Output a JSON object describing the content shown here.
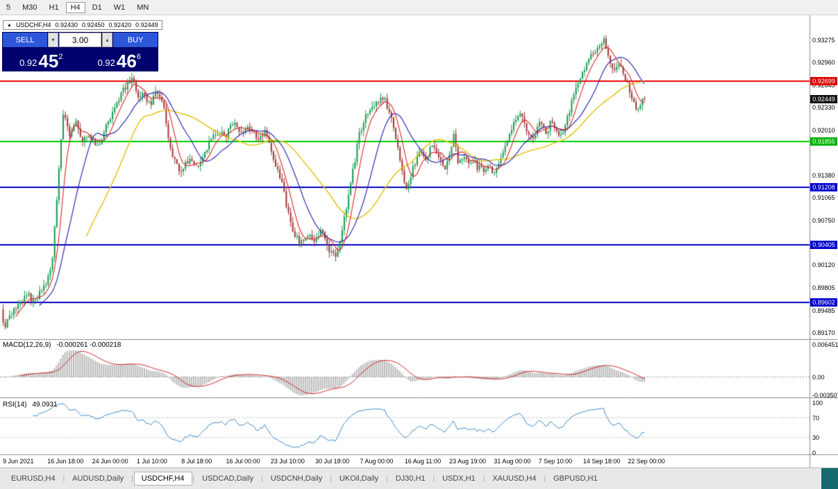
{
  "toolbar": {
    "timeframes": [
      "5",
      "M30",
      "H1",
      "H4",
      "D1",
      "W1",
      "MN"
    ],
    "active": "H4"
  },
  "chart": {
    "title": "USDCHF,H4",
    "ohlc": {
      "open": "0.92430",
      "high": "0.92450",
      "low": "0.92420",
      "close": "0.92449"
    },
    "trade_panel": {
      "sell_label": "SELL",
      "buy_label": "BUY",
      "volume": "3.00",
      "sell": {
        "prefix": "0.92",
        "big": "45",
        "pip": "2"
      },
      "buy": {
        "prefix": "0.92",
        "big": "46",
        "pip": "6"
      }
    }
  },
  "chart_data": {
    "type": "candlestick",
    "symbol": "USDCHF",
    "timeframe": "H4",
    "title": "USDCHF,H4",
    "last_close": 0.92449,
    "price_axis": {
      "min": 0.8917,
      "max": 0.93275
    },
    "y_ticks": [
      {
        "label": "0.93275",
        "value": 0.93275
      },
      {
        "label": "0.92960",
        "value": 0.9296
      },
      {
        "label": "0.92645",
        "value": 0.92645
      },
      {
        "label": "0.92330",
        "value": 0.9233
      },
      {
        "label": "0.92010",
        "value": 0.9201
      },
      {
        "label": "0.91380",
        "value": 0.9138
      },
      {
        "label": "0.91065",
        "value": 0.91065
      },
      {
        "label": "0.90750",
        "value": 0.9075
      },
      {
        "label": "0.90120",
        "value": 0.9012
      },
      {
        "label": "0.89805",
        "value": 0.89805
      },
      {
        "label": "0.89485",
        "value": 0.89485
      },
      {
        "label": "0.89170",
        "value": 0.8917
      }
    ],
    "price_tags": [
      {
        "label": "0.92699",
        "value": 0.92699,
        "color": "#dd0000"
      },
      {
        "label": "0.92449",
        "value": 0.92449,
        "color": "#111111"
      },
      {
        "label": "0.91855",
        "value": 0.91855,
        "color": "#00b300"
      },
      {
        "label": "0.91208",
        "value": 0.91208,
        "color": "#0000cc"
      },
      {
        "label": "0.90405",
        "value": 0.90405,
        "color": "#0000cc"
      },
      {
        "label": "0.89602",
        "value": 0.89602,
        "color": "#0000cc"
      }
    ],
    "hlines": [
      {
        "price": 0.92699,
        "color": "#ee0000"
      },
      {
        "price": 0.91855,
        "color": "#00cc00"
      },
      {
        "price": 0.91208,
        "color": "#0000bb"
      },
      {
        "price": 0.90405,
        "color": "#0000bb"
      },
      {
        "price": 0.89602,
        "color": "#0000bb"
      }
    ],
    "x_labels": [
      "9 Jun 2021",
      "16 Jun 18:00",
      "24 Jun 00:00",
      "1 Jul 10:00",
      "8 Jul 18:00",
      "16 Jul 00:00",
      "23 Jul 10:00",
      "30 Jul 18:00",
      "7 Aug 00:00",
      "16 Aug 11:00",
      "23 Aug 19:00",
      "31 Aug 00:00",
      "7 Sep 10:00",
      "14 Sep 18:00",
      "22 Sep 00:00"
    ],
    "candles_count": 300,
    "price_path": [
      [
        0.0,
        0.895
      ],
      [
        0.006,
        0.8924
      ],
      [
        0.013,
        0.8941
      ],
      [
        0.028,
        0.8958
      ],
      [
        0.042,
        0.8971
      ],
      [
        0.052,
        0.8958
      ],
      [
        0.062,
        0.8976
      ],
      [
        0.072,
        0.8986
      ],
      [
        0.08,
        0.9022
      ],
      [
        0.088,
        0.912
      ],
      [
        0.098,
        0.9236
      ],
      [
        0.106,
        0.919
      ],
      [
        0.116,
        0.9218
      ],
      [
        0.126,
        0.9188
      ],
      [
        0.138,
        0.9196
      ],
      [
        0.15,
        0.9176
      ],
      [
        0.165,
        0.921
      ],
      [
        0.18,
        0.924
      ],
      [
        0.195,
        0.9264
      ],
      [
        0.205,
        0.9276
      ],
      [
        0.213,
        0.9246
      ],
      [
        0.222,
        0.9256
      ],
      [
        0.232,
        0.9236
      ],
      [
        0.242,
        0.9258
      ],
      [
        0.252,
        0.924
      ],
      [
        0.266,
        0.9166
      ],
      [
        0.28,
        0.914
      ],
      [
        0.293,
        0.9162
      ],
      [
        0.305,
        0.915
      ],
      [
        0.32,
        0.9176
      ],
      [
        0.335,
        0.92
      ],
      [
        0.35,
        0.9192
      ],
      [
        0.362,
        0.9212
      ],
      [
        0.375,
        0.9198
      ],
      [
        0.388,
        0.9206
      ],
      [
        0.4,
        0.919
      ],
      [
        0.412,
        0.9198
      ],
      [
        0.424,
        0.9166
      ],
      [
        0.438,
        0.9126
      ],
      [
        0.452,
        0.9066
      ],
      [
        0.465,
        0.9043
      ],
      [
        0.476,
        0.9056
      ],
      [
        0.488,
        0.9048
      ],
      [
        0.5,
        0.906
      ],
      [
        0.512,
        0.9031
      ],
      [
        0.523,
        0.9022
      ],
      [
        0.532,
        0.906
      ],
      [
        0.545,
        0.9124
      ],
      [
        0.558,
        0.9194
      ],
      [
        0.572,
        0.9228
      ],
      [
        0.585,
        0.924
      ],
      [
        0.598,
        0.9245
      ],
      [
        0.61,
        0.9214
      ],
      [
        0.622,
        0.916
      ],
      [
        0.633,
        0.9113
      ],
      [
        0.643,
        0.915
      ],
      [
        0.653,
        0.9176
      ],
      [
        0.663,
        0.916
      ],
      [
        0.673,
        0.9186
      ],
      [
        0.683,
        0.9163
      ],
      [
        0.693,
        0.9146
      ],
      [
        0.7,
        0.9172
      ],
      [
        0.706,
        0.9194
      ],
      [
        0.713,
        0.9152
      ],
      [
        0.722,
        0.9162
      ],
      [
        0.731,
        0.915
      ],
      [
        0.74,
        0.916
      ],
      [
        0.7415,
        0.9128
      ],
      [
        0.743,
        0.9158
      ],
      [
        0.752,
        0.9146
      ],
      [
        0.761,
        0.9154
      ],
      [
        0.77,
        0.9138
      ],
      [
        0.78,
        0.9162
      ],
      [
        0.79,
        0.9186
      ],
      [
        0.8,
        0.9216
      ],
      [
        0.81,
        0.9228
      ],
      [
        0.82,
        0.92
      ],
      [
        0.83,
        0.919
      ],
      [
        0.84,
        0.9212
      ],
      [
        0.85,
        0.9198
      ],
      [
        0.858,
        0.9216
      ],
      [
        0.866,
        0.92
      ],
      [
        0.874,
        0.919
      ],
      [
        0.882,
        0.9216
      ],
      [
        0.89,
        0.9242
      ],
      [
        0.9,
        0.9268
      ],
      [
        0.912,
        0.9295
      ],
      [
        0.925,
        0.9312
      ],
      [
        0.94,
        0.9328
      ],
      [
        0.948,
        0.9299
      ],
      [
        0.956,
        0.9286
      ],
      [
        0.963,
        0.9296
      ],
      [
        0.97,
        0.9281
      ],
      [
        0.978,
        0.9261
      ],
      [
        0.985,
        0.9241
      ],
      [
        0.992,
        0.9227
      ],
      [
        1.0,
        0.92449
      ]
    ],
    "moving_averages": [
      {
        "name": "slow",
        "period": 40,
        "color": "#e2bf00",
        "width": 1.4
      },
      {
        "name": "medium",
        "period": 18,
        "color": "#2b2bb4",
        "width": 1.2
      },
      {
        "name": "fast",
        "period": 7,
        "color": "#d92525",
        "width": 1.1
      }
    ],
    "colors": {
      "up": "#169a4f",
      "down": "#a03636",
      "macd_hist": "#b8b8b8",
      "macd_signal": "#cc2222",
      "rsi": "#3c85c6"
    },
    "indicators": {
      "macd": {
        "label": "MACD(12,26,9)",
        "values_text": "-0.000261 -0.000218",
        "fast": 12,
        "slow": 26,
        "signal": 9,
        "axis": [
          "0.006451",
          "0.00",
          "-0.003507"
        ]
      },
      "rsi": {
        "label": "RSI(14)",
        "value_text": "49.0931",
        "period": 14,
        "axis": [
          "100",
          "70",
          "30",
          "0"
        ],
        "levels": [
          70,
          30
        ]
      }
    }
  },
  "tabs": [
    {
      "label": "EURUSD,H4",
      "active": false
    },
    {
      "label": "AUDUSD,Daily",
      "active": false
    },
    {
      "label": "USDCHF,H4",
      "active": true
    },
    {
      "label": "USDCAD,Daily",
      "active": false
    },
    {
      "label": "USDCNH,Daily",
      "active": false
    },
    {
      "label": "UKOil,Daily",
      "active": false
    },
    {
      "label": "DJ30,H1",
      "active": false
    },
    {
      "label": "USDX,H1",
      "active": false
    },
    {
      "label": "XAUUSD,H4",
      "active": false
    },
    {
      "label": "GBPUSD,H1",
      "active": false
    }
  ]
}
